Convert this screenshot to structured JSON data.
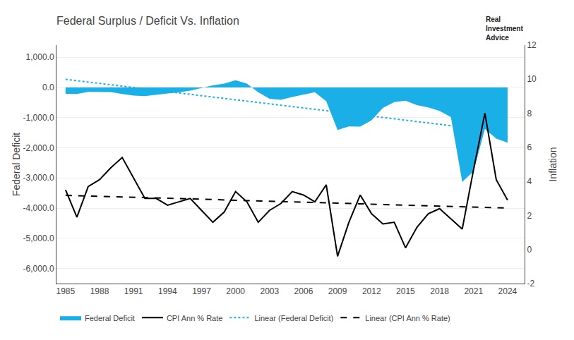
{
  "chart_data": {
    "type": "area",
    "title": "Federal Surplus / Deficit Vs. Inflation",
    "ylabel": "Federal Deficit",
    "y2label": "Inflation",
    "x": [
      1985,
      1986,
      1987,
      1988,
      1989,
      1990,
      1991,
      1992,
      1993,
      1994,
      1995,
      1996,
      1997,
      1998,
      1999,
      2000,
      2001,
      2002,
      2003,
      2004,
      2005,
      2006,
      2007,
      2008,
      2009,
      2010,
      2011,
      2012,
      2013,
      2014,
      2015,
      2016,
      2017,
      2018,
      2019,
      2020,
      2021,
      2022,
      2023,
      2024
    ],
    "xlim": [
      1984.2,
      2025.5
    ],
    "xticks": [
      1985,
      1988,
      1991,
      1994,
      1997,
      2000,
      2003,
      2006,
      2009,
      2012,
      2015,
      2018,
      2021,
      2024
    ],
    "ylim": [
      -6500,
      1400
    ],
    "yticks": [
      {
        "value": 1000,
        "label": "1,000.0"
      },
      {
        "value": 0,
        "label": "0.0"
      },
      {
        "value": -1000,
        "label": "-1,000.0"
      },
      {
        "value": -2000,
        "label": "-2,000.0"
      },
      {
        "value": -3000,
        "label": "-3,000.0"
      },
      {
        "value": -4000,
        "label": "-4,000.0"
      },
      {
        "value": -5000,
        "label": "-5,000.0"
      },
      {
        "value": -6000,
        "label": "-6,000.0"
      }
    ],
    "y2lim": [
      -2,
      12
    ],
    "y2ticks": [
      12,
      10,
      8,
      6,
      4,
      2,
      0,
      -2
    ],
    "grid": true,
    "legend": "lower left",
    "annotations": [
      "Real\nInvestment\nAdvice"
    ],
    "series": [
      {
        "name": "Federal Deficit",
        "type": "area",
        "color": "#1AAFE6",
        "values": [
          -212,
          -221,
          -150,
          -155,
          -153,
          -221,
          -269,
          -290,
          -255,
          -203,
          -164,
          -107,
          -22,
          69,
          126,
          236,
          128,
          -158,
          -378,
          -413,
          -318,
          -248,
          -161,
          -459,
          -1413,
          -1294,
          -1300,
          -1087,
          -680,
          -485,
          -439,
          -585,
          -665,
          -779,
          -984,
          -3132,
          -2776,
          -1376,
          -1695,
          -1833
        ]
      },
      {
        "name": "CPI Ann % Rate",
        "type": "line",
        "axis": "y2",
        "color": "#000000",
        "line_style": "solid",
        "values": [
          3.5,
          1.9,
          3.7,
          4.1,
          4.8,
          5.4,
          4.2,
          3.0,
          3.0,
          2.6,
          2.8,
          3.0,
          2.3,
          1.6,
          2.2,
          3.4,
          2.8,
          1.6,
          2.3,
          2.7,
          3.4,
          3.2,
          2.8,
          3.8,
          -0.4,
          1.6,
          3.2,
          2.1,
          1.5,
          1.6,
          0.1,
          1.3,
          2.1,
          2.4,
          1.8,
          1.2,
          4.7,
          8.0,
          4.1,
          2.9
        ]
      },
      {
        "name": "Linear (Federal Deficit)",
        "type": "line",
        "color": "#1AAFE6",
        "line_style": "dotted",
        "x": [
          1985,
          2024
        ],
        "values": [
          266.92,
          -1492.97
        ]
      },
      {
        "name": "Linear (CPI Ann % Rate)",
        "type": "line",
        "axis": "y2",
        "color": "#000000",
        "line_style": "dashed",
        "x": [
          1985,
          2024
        ],
        "values": [
          3.183,
          2.432
        ]
      }
    ]
  }
}
